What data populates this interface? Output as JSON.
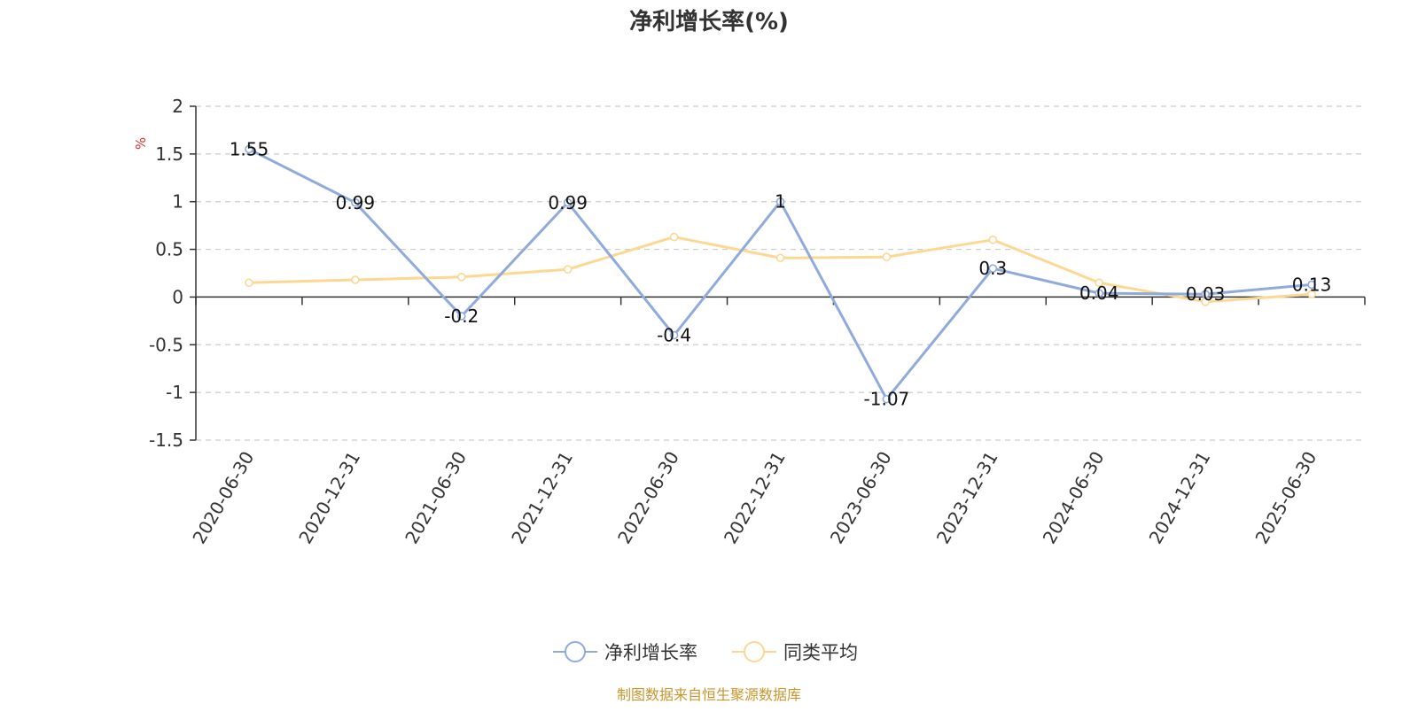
{
  "chart_data": {
    "type": "line",
    "title": "净利增长率(%)",
    "ylabel": "%",
    "xlabel": "",
    "categories": [
      "2020-06-30",
      "2020-12-31",
      "2021-06-30",
      "2021-12-31",
      "2022-06-30",
      "2022-12-31",
      "2023-06-30",
      "2023-12-31",
      "2024-06-30",
      "2024-12-31",
      "2025-06-30"
    ],
    "ylim": [
      -1.5,
      2
    ],
    "yticks": [
      2,
      1.5,
      1,
      0.5,
      0,
      -0.5,
      -1,
      -1.5
    ],
    "ytick_labels": [
      "2",
      "1.5",
      "1",
      "0.5",
      "0",
      "-0.5",
      "-1",
      "-1.5"
    ],
    "grid": true,
    "legend_position": "bottom-center",
    "series": [
      {
        "name": "净利增长率",
        "color": "#8faadc",
        "values": [
          1.55,
          0.99,
          -0.2,
          0.99,
          -0.4,
          1,
          -1.07,
          0.3,
          0.04,
          0.03,
          0.13
        ],
        "data_labels": [
          "1.55",
          "0.99",
          "-0.2",
          "0.99",
          "-0.4",
          "1",
          "-1.07",
          "0.3",
          "0.04",
          "0.03",
          "0.13"
        ]
      },
      {
        "name": "同类平均",
        "color": "#fcd892",
        "values": [
          0.15,
          0.18,
          0.21,
          0.29,
          0.63,
          0.41,
          0.42,
          0.6,
          0.15,
          -0.05,
          0.03
        ]
      }
    ]
  },
  "source_text": "制图数据来自恒生聚源数据库",
  "colors": {
    "title": "#333333",
    "axis": "#333333",
    "grid": "#cccccc",
    "unit_label": "#e0302a",
    "source_text": "#c8962c"
  }
}
